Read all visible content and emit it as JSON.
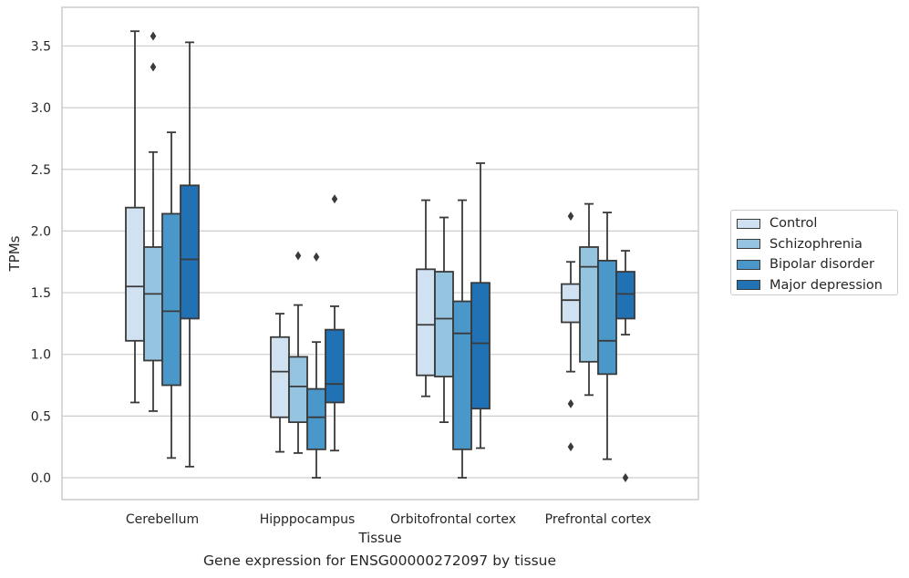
{
  "chart_data": {
    "type": "box",
    "title": "",
    "caption": "Gene expression for ENSG00000272097 by tissue",
    "xlabel": "Tissue",
    "ylabel": "TPMs",
    "ylim": [
      -0.17,
      3.8
    ],
    "yticks": [
      0.0,
      0.5,
      1.0,
      1.5,
      2.0,
      2.5,
      3.0,
      3.5
    ],
    "ytick_labels": [
      "0.0",
      "0.5",
      "1.0",
      "1.5",
      "2.0",
      "2.5",
      "3.0",
      "3.5"
    ],
    "grid": "horizontal",
    "legend_position": "right",
    "categories": [
      "Cerebellum",
      "Hipppocampus",
      "Orbitofrontal cortex",
      "Prefrontal cortex"
    ],
    "series": [
      {
        "name": "Control",
        "color": "#d0e1f2",
        "boxes": [
          {
            "q1": 1.11,
            "median": 1.55,
            "q3": 2.19,
            "whisker_low": 0.61,
            "whisker_high": 3.62,
            "outliers": []
          },
          {
            "q1": 0.49,
            "median": 0.86,
            "q3": 1.14,
            "whisker_low": 0.21,
            "whisker_high": 1.33,
            "outliers": []
          },
          {
            "q1": 0.83,
            "median": 1.24,
            "q3": 1.69,
            "whisker_low": 0.66,
            "whisker_high": 2.25,
            "outliers": []
          },
          {
            "q1": 1.26,
            "median": 1.44,
            "q3": 1.57,
            "whisker_low": 0.86,
            "whisker_high": 1.75,
            "outliers": [
              2.12,
              0.6,
              0.25
            ]
          }
        ]
      },
      {
        "name": "Schizophrenia",
        "color": "#94c4df",
        "boxes": [
          {
            "q1": 0.95,
            "median": 1.49,
            "q3": 1.87,
            "whisker_low": 0.54,
            "whisker_high": 2.64,
            "outliers": [
              3.58,
              3.33
            ]
          },
          {
            "q1": 0.45,
            "median": 0.74,
            "q3": 0.98,
            "whisker_low": 0.2,
            "whisker_high": 1.4,
            "outliers": [
              1.8
            ]
          },
          {
            "q1": 0.82,
            "median": 1.29,
            "q3": 1.67,
            "whisker_low": 0.45,
            "whisker_high": 2.11,
            "outliers": []
          },
          {
            "q1": 0.94,
            "median": 1.71,
            "q3": 1.87,
            "whisker_low": 0.67,
            "whisker_high": 2.22,
            "outliers": []
          }
        ]
      },
      {
        "name": "Bipolar disorder",
        "color": "#4a98c9",
        "boxes": [
          {
            "q1": 0.75,
            "median": 1.35,
            "q3": 2.14,
            "whisker_low": 0.16,
            "whisker_high": 2.8,
            "outliers": []
          },
          {
            "q1": 0.23,
            "median": 0.49,
            "q3": 0.72,
            "whisker_low": 0.0,
            "whisker_high": 1.1,
            "outliers": [
              1.79
            ]
          },
          {
            "q1": 0.23,
            "median": 1.17,
            "q3": 1.43,
            "whisker_low": 0.0,
            "whisker_high": 2.25,
            "outliers": []
          },
          {
            "q1": 0.84,
            "median": 1.11,
            "q3": 1.76,
            "whisker_low": 0.15,
            "whisker_high": 2.15,
            "outliers": []
          }
        ]
      },
      {
        "name": "Major depression",
        "color": "#2171b5",
        "boxes": [
          {
            "q1": 1.29,
            "median": 1.77,
            "q3": 2.37,
            "whisker_low": 0.09,
            "whisker_high": 3.53,
            "outliers": []
          },
          {
            "q1": 0.61,
            "median": 0.76,
            "q3": 1.2,
            "whisker_low": 0.22,
            "whisker_high": 1.39,
            "outliers": [
              2.26
            ]
          },
          {
            "q1": 0.56,
            "median": 1.09,
            "q3": 1.58,
            "whisker_low": 0.24,
            "whisker_high": 2.55,
            "outliers": []
          },
          {
            "q1": 1.29,
            "median": 1.49,
            "q3": 1.67,
            "whisker_low": 1.16,
            "whisker_high": 1.84,
            "outliers": [
              0.0
            ]
          }
        ]
      }
    ]
  }
}
